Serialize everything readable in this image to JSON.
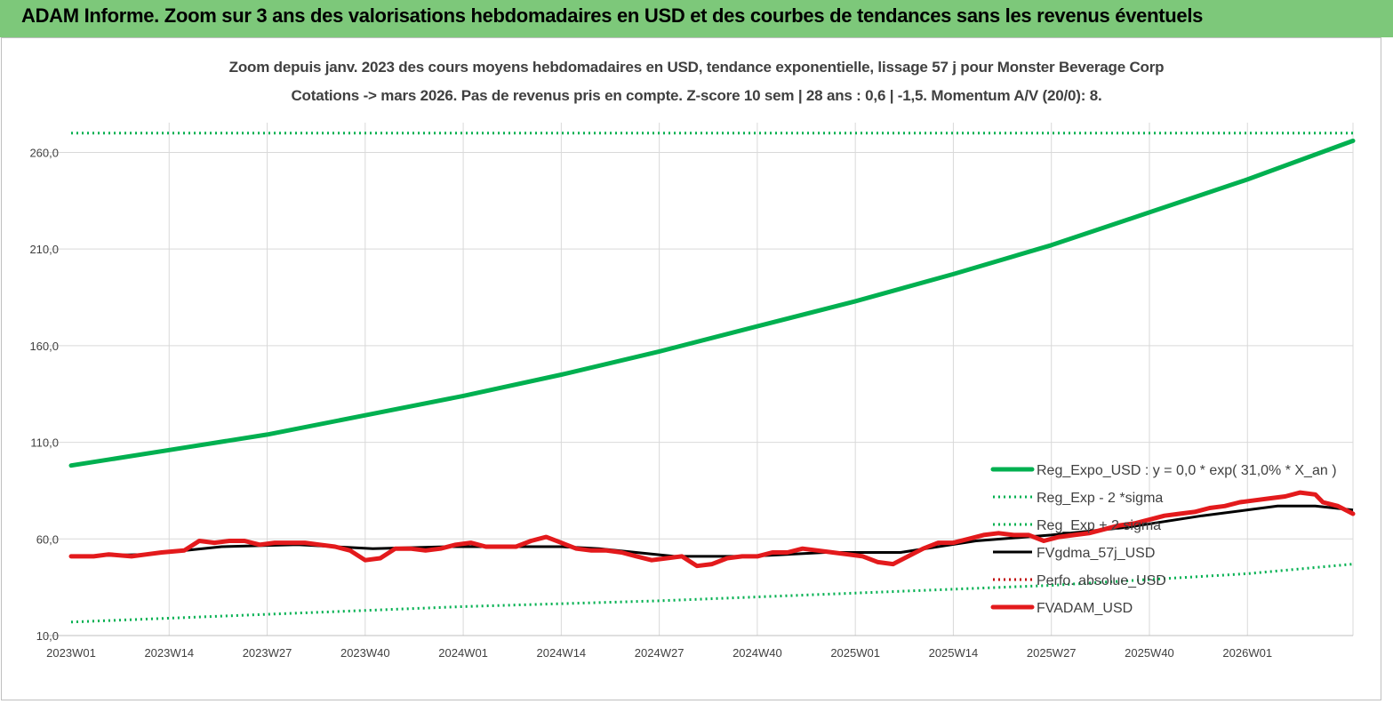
{
  "banner": {
    "title": "ADAM Informe. Zoom sur 3 ans des valorisations hebdomadaires en USD et des courbes de tendances sans les revenus éventuels"
  },
  "colors": {
    "banner_bg": "#7dc87a",
    "reg_expo": "#00b050",
    "sigma": "#00b050",
    "fvgdma": "#000000",
    "perfo": "#c00000",
    "fvadam": "#e31a1c"
  },
  "chart_data": {
    "type": "line",
    "title_line1": "Zoom depuis janv. 2023 des cours moyens hebdomadaires en USD, tendance exponentielle, lissage 57 j pour Monster Beverage Corp",
    "title_line2": "Cotations -> mars 2026. Pas de revenus pris en compte. Z-score 10 sem | 28 ans : 0,6 | -1,5. Momentum A/V (20/0): 8.",
    "ylim": [
      10,
      280
    ],
    "y_ticks": [
      "10,0",
      "60,0",
      "110,0",
      "160,0",
      "210,0",
      "260,0"
    ],
    "y_tick_values": [
      10,
      60,
      110,
      160,
      210,
      260
    ],
    "x_ticks": [
      "2023W01",
      "2023W14",
      "2023W27",
      "2023W40",
      "2024W01",
      "2024W14",
      "2024W27",
      "2024W40",
      "2025W01",
      "2025W14",
      "2025W27",
      "2025W40",
      "2026W01"
    ],
    "x_tick_weeks": [
      0,
      13,
      26,
      39,
      52,
      65,
      78,
      91,
      104,
      117,
      130,
      143,
      156
    ],
    "weeks_total": 170,
    "grid": true,
    "legend_position": "bottom-right",
    "series": [
      {
        "name": "Reg_Expo_USD : y = 0,0 * exp( 31,0% *  X_an )",
        "style": "solid-thick",
        "color": "#00b050",
        "x": [
          0,
          13,
          26,
          39,
          52,
          65,
          78,
          91,
          104,
          117,
          130,
          143,
          156,
          170
        ],
        "values": [
          98,
          106,
          114,
          124,
          134,
          145,
          157,
          170,
          183,
          197,
          212,
          229,
          246,
          266
        ]
      },
      {
        "name": "Reg_Exp - 2 *sigma",
        "style": "dotted",
        "color": "#00b050",
        "x": [
          0,
          26,
          52,
          78,
          104,
          130,
          156,
          170
        ],
        "values": [
          17,
          21,
          25,
          28,
          32,
          36,
          42,
          47
        ]
      },
      {
        "name": "Reg_Exp + 2 sigma",
        "style": "dotted",
        "color": "#00b050",
        "x": [
          0,
          170
        ],
        "values": [
          270,
          270
        ]
      },
      {
        "name": "FVgdma_57j_USD",
        "style": "solid",
        "color": "#000000",
        "x": [
          0,
          10,
          20,
          30,
          40,
          50,
          60,
          65,
          70,
          80,
          90,
          100,
          110,
          120,
          130,
          140,
          150,
          160,
          165,
          170
        ],
        "values": [
          51,
          52,
          56,
          57,
          55,
          56,
          56,
          56,
          55,
          51,
          51,
          53,
          53,
          59,
          62,
          66,
          72,
          77,
          77,
          75
        ]
      },
      {
        "name": "Perfo. absolue_USD",
        "style": "dotted",
        "color": "#c00000",
        "x": [],
        "values": []
      },
      {
        "name": "FVADAM_USD",
        "style": "solid-thick",
        "color": "#e31a1c",
        "x": [
          0,
          3,
          5,
          8,
          10,
          12,
          15,
          17,
          19,
          21,
          23,
          25,
          27,
          29,
          31,
          33,
          35,
          37,
          39,
          41,
          43,
          45,
          47,
          49,
          51,
          53,
          55,
          57,
          59,
          61,
          63,
          65,
          67,
          69,
          71,
          73,
          75,
          77,
          79,
          81,
          83,
          85,
          87,
          89,
          91,
          93,
          95,
          97,
          99,
          101,
          103,
          105,
          107,
          109,
          111,
          113,
          115,
          117,
          119,
          121,
          123,
          125,
          127,
          129,
          131,
          133,
          135,
          137,
          139,
          141,
          143,
          145,
          147,
          149,
          151,
          153,
          155,
          157,
          159,
          161,
          163,
          165,
          166,
          168,
          170
        ],
        "values": [
          51,
          51,
          52,
          51,
          52,
          53,
          54,
          59,
          58,
          59,
          59,
          57,
          58,
          58,
          58,
          57,
          56,
          54,
          49,
          50,
          55,
          55,
          54,
          55,
          57,
          58,
          56,
          56,
          56,
          59,
          61,
          58,
          55,
          54,
          54,
          53,
          51,
          49,
          50,
          51,
          46,
          47,
          50,
          51,
          51,
          53,
          53,
          55,
          54,
          53,
          52,
          51,
          48,
          47,
          51,
          55,
          58,
          58,
          60,
          62,
          63,
          62,
          62,
          59,
          61,
          62,
          63,
          65,
          67,
          68,
          70,
          72,
          73,
          74,
          76,
          77,
          79,
          80,
          81,
          82,
          84,
          83,
          79,
          77,
          73
        ]
      }
    ]
  }
}
